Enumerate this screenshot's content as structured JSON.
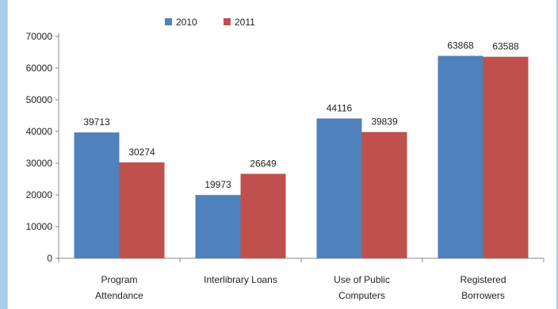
{
  "chart_data": {
    "type": "bar",
    "categories": [
      [
        "Program",
        "Attendance"
      ],
      [
        "Interlibrary Loans"
      ],
      [
        "Use of Public",
        "Computers"
      ],
      [
        "Registered",
        "Borrowers"
      ]
    ],
    "series": [
      {
        "name": "2010",
        "color": "#4f81bd",
        "values": [
          39713,
          19973,
          44116,
          63868
        ]
      },
      {
        "name": "2011",
        "color": "#c0504d",
        "values": [
          30274,
          26649,
          39839,
          63588
        ]
      }
    ],
    "ylim": [
      0,
      70000
    ],
    "yticks": [
      0,
      10000,
      20000,
      30000,
      40000,
      50000,
      60000,
      70000
    ],
    "legend_position": "top-center",
    "grid": false,
    "title": "",
    "xlabel": "",
    "ylabel": ""
  }
}
